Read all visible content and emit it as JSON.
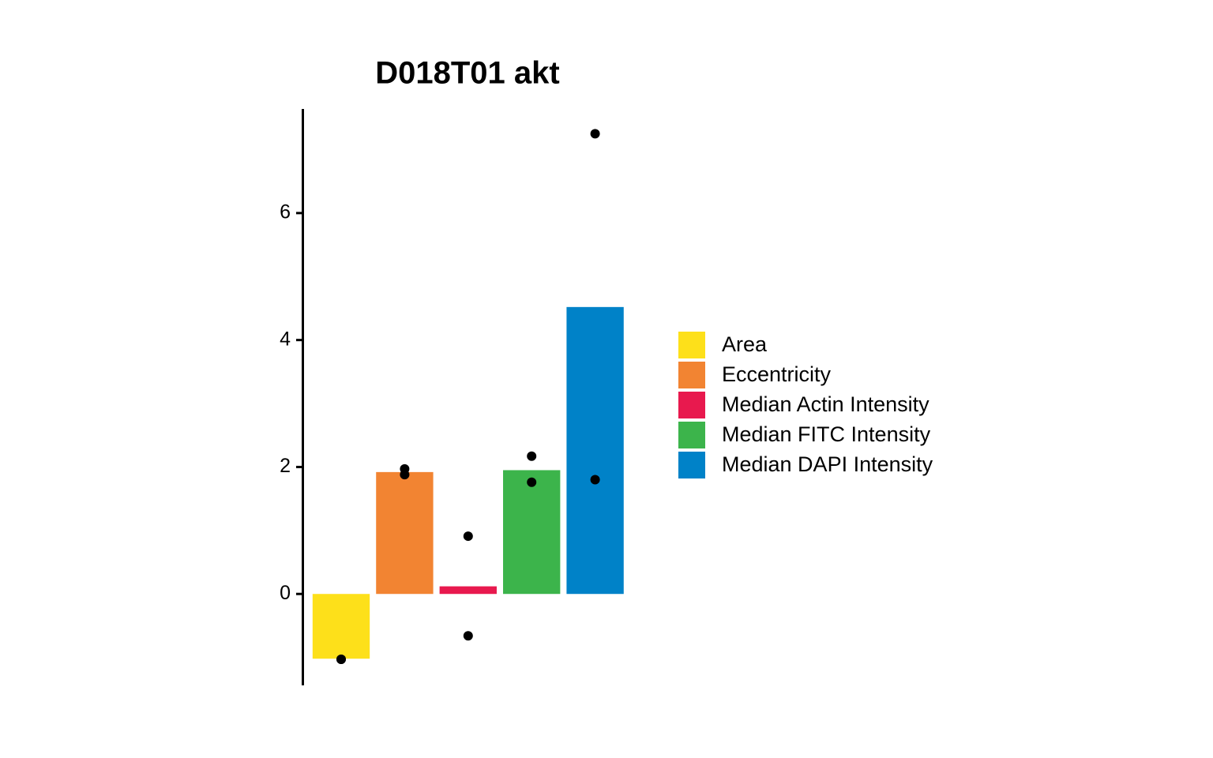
{
  "chart_data": {
    "type": "bar",
    "title": "D018T01 akt",
    "categories": [
      "Area",
      "Eccentricity",
      "Median Actin Intensity",
      "Median FITC Intensity",
      "Median DAPI Intensity"
    ],
    "values": [
      -1.02,
      1.92,
      0.12,
      1.95,
      4.52
    ],
    "colors": [
      "#fde01a",
      "#f28432",
      "#e8194e",
      "#3cb44b",
      "#0082c8"
    ],
    "points": [
      [
        -1.03,
        -1.03
      ],
      [
        1.97,
        1.88
      ],
      [
        0.91,
        -0.66
      ],
      [
        2.17,
        1.76
      ],
      [
        7.25,
        1.8
      ]
    ],
    "ylim": [
      -1.44,
      7.64
    ],
    "yticks": [
      0,
      2,
      4,
      6
    ],
    "legend": "right"
  }
}
